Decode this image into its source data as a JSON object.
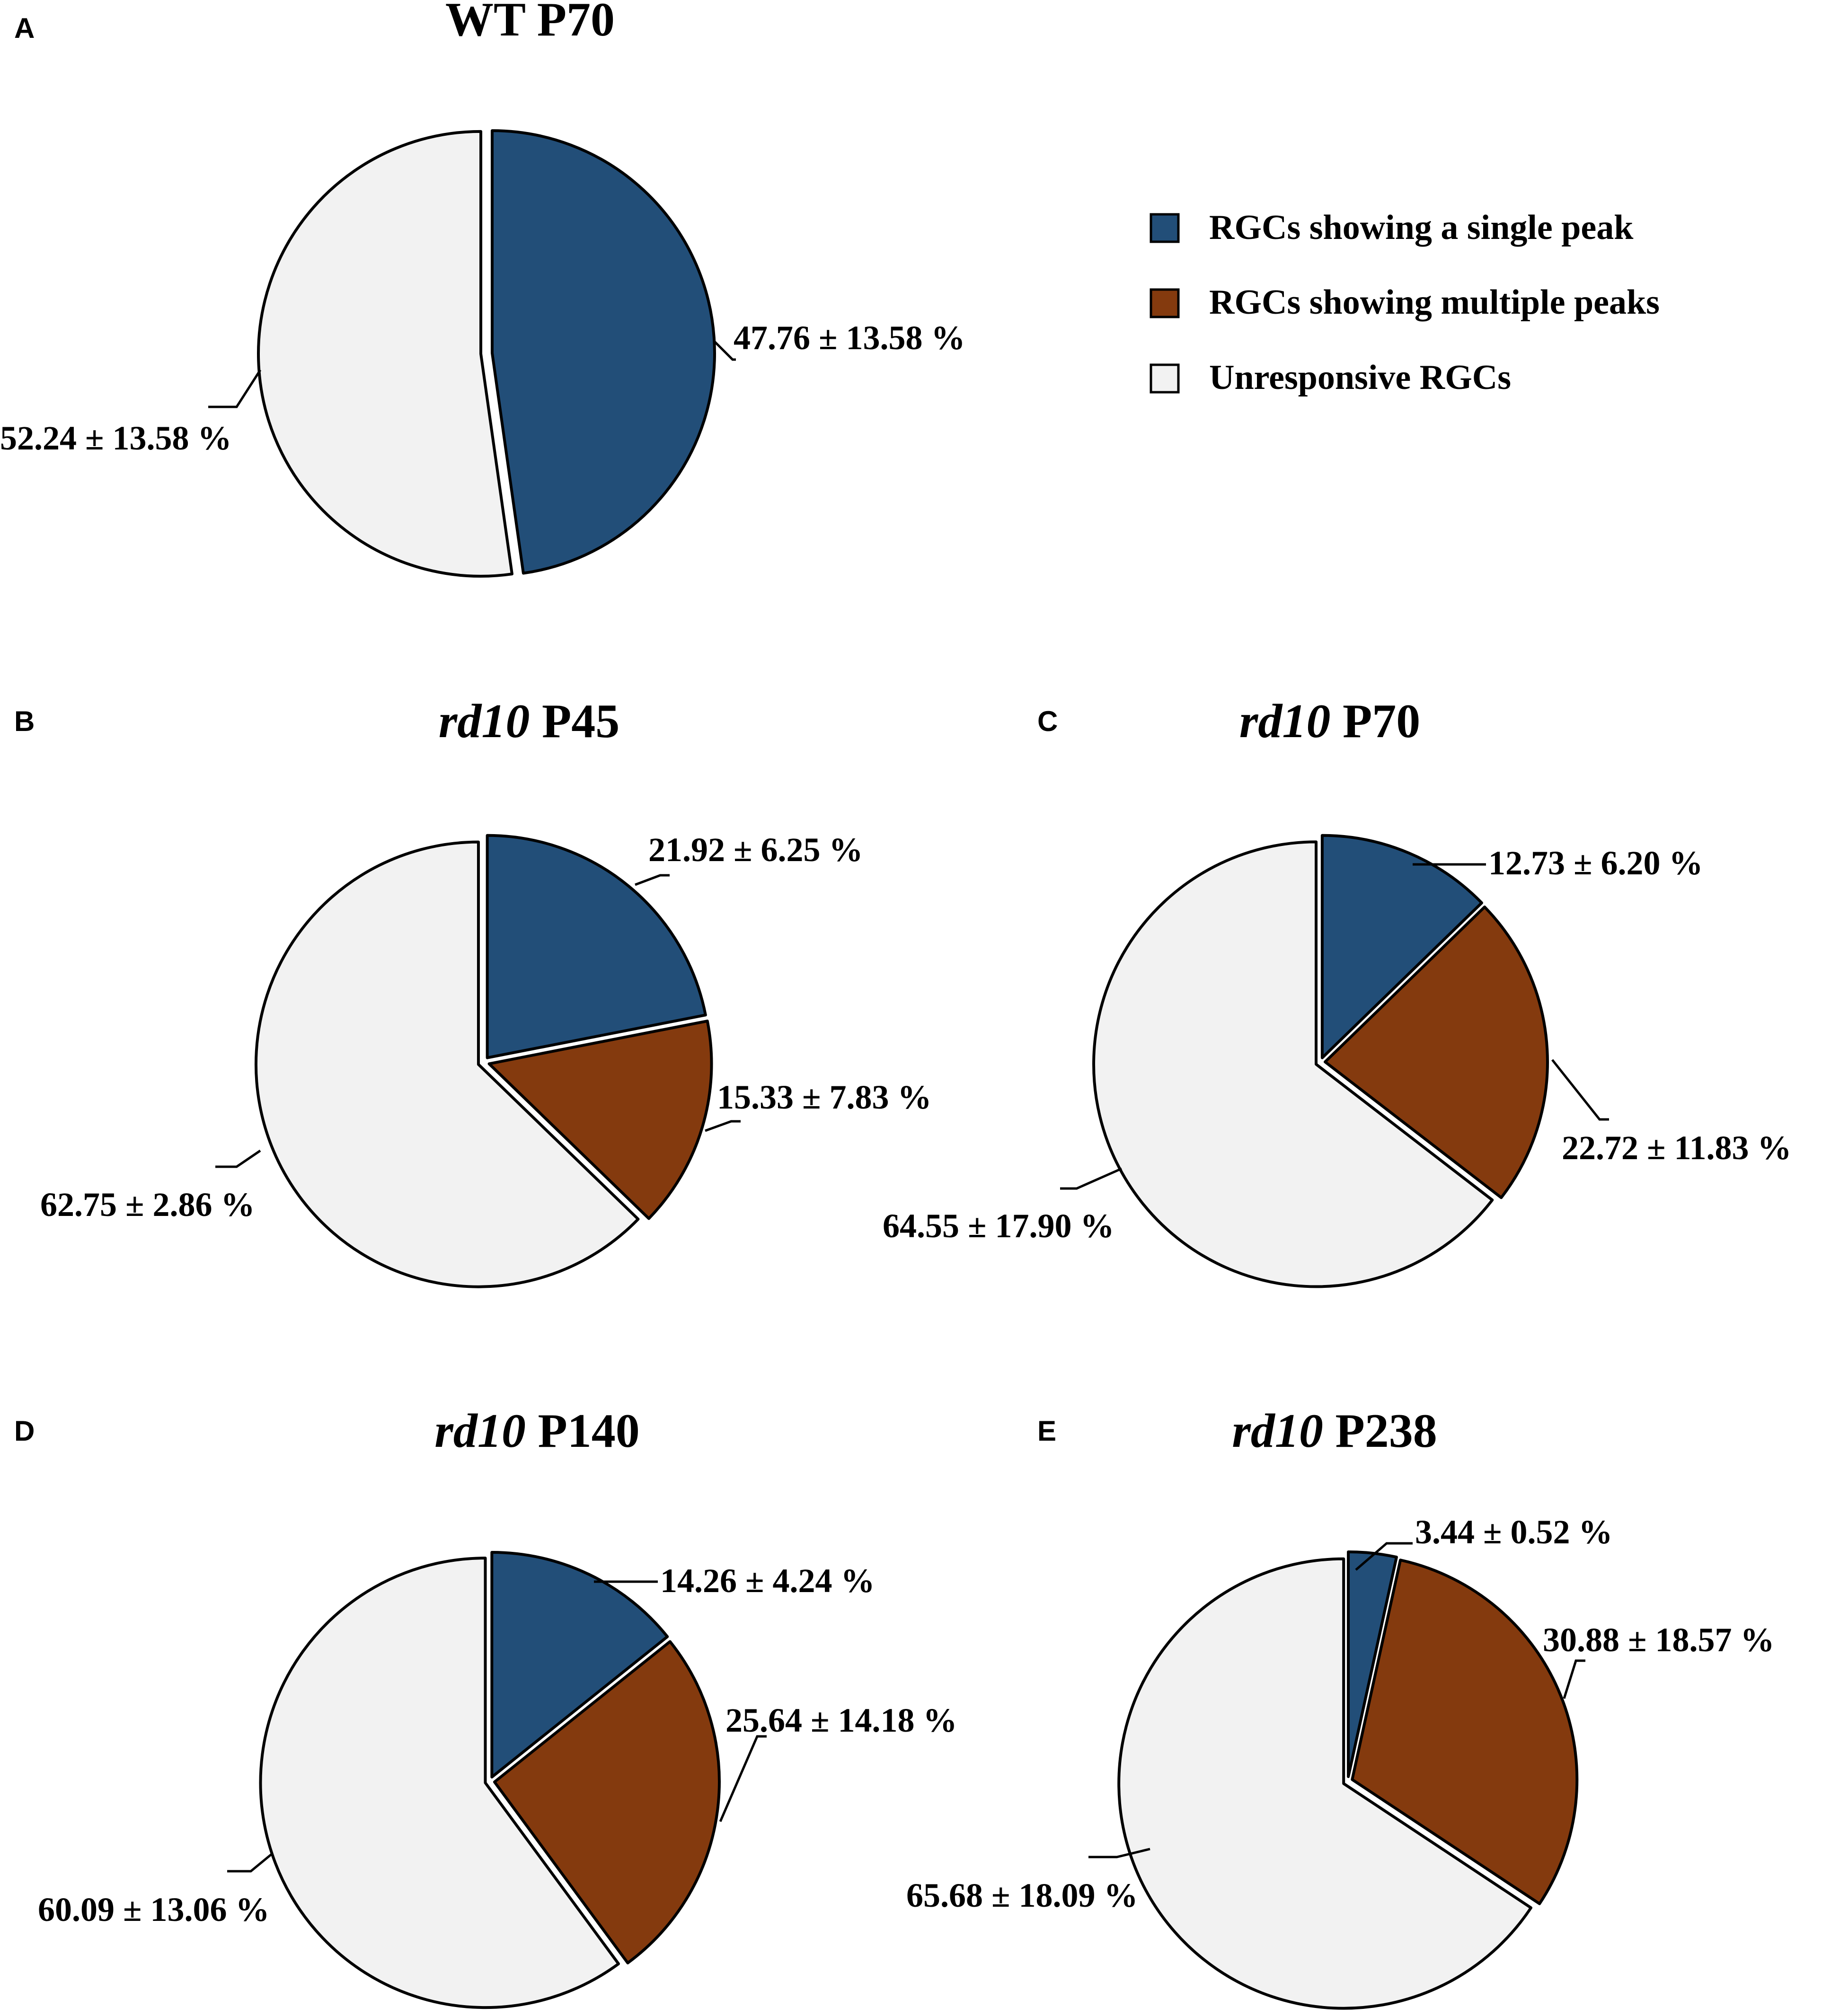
{
  "colors": {
    "single_peak": "#224e78",
    "multiple_peaks": "#843a0e",
    "unresponsive": "#f2f2f2"
  },
  "legend": {
    "items": [
      {
        "label": "RGCs showing a single peak",
        "color_key": "single_peak"
      },
      {
        "label": "RGCs showing multiple peaks",
        "color_key": "multiple_peaks"
      },
      {
        "label": "Unresponsive RGCs",
        "color_key": "unresponsive"
      }
    ]
  },
  "chart_data": [
    {
      "type": "pie",
      "panel": "A",
      "title_italic": "",
      "title_rest": "WT P70",
      "slices": [
        {
          "category": "RGCs showing a single peak",
          "color_key": "single_peak",
          "value": 47.76,
          "sd": 13.58,
          "label": "47.76 ± 13.58 %"
        },
        {
          "category": "Unresponsive RGCs",
          "color_key": "unresponsive",
          "value": 52.24,
          "sd": 13.58,
          "label": "52.24 ± 13.58 %"
        }
      ]
    },
    {
      "type": "pie",
      "panel": "B",
      "title_italic": "rd10",
      "title_rest": " P45",
      "slices": [
        {
          "category": "RGCs showing a single peak",
          "color_key": "single_peak",
          "value": 21.92,
          "sd": 6.25,
          "label": "21.92 ± 6.25 %"
        },
        {
          "category": "RGCs showing multiple peaks",
          "color_key": "multiple_peaks",
          "value": 15.33,
          "sd": 7.83,
          "label": "15.33 ± 7.83 %"
        },
        {
          "category": "Unresponsive RGCs",
          "color_key": "unresponsive",
          "value": 62.75,
          "sd": 2.86,
          "label": "62.75 ± 2.86 %"
        }
      ]
    },
    {
      "type": "pie",
      "panel": "C",
      "title_italic": "rd10",
      "title_rest": " P70",
      "slices": [
        {
          "category": "RGCs showing a single peak",
          "color_key": "single_peak",
          "value": 12.73,
          "sd": 6.2,
          "label": "12.73 ± 6.20 %"
        },
        {
          "category": "RGCs showing multiple peaks",
          "color_key": "multiple_peaks",
          "value": 22.72,
          "sd": 11.83,
          "label": "22.72 ± 11.83 %"
        },
        {
          "category": "Unresponsive RGCs",
          "color_key": "unresponsive",
          "value": 64.55,
          "sd": 17.9,
          "label": "64.55 ± 17.90 %"
        }
      ]
    },
    {
      "type": "pie",
      "panel": "D",
      "title_italic": "rd10",
      "title_rest": " P140",
      "slices": [
        {
          "category": "RGCs showing a single peak",
          "color_key": "single_peak",
          "value": 14.26,
          "sd": 4.24,
          "label": "14.26 ± 4.24 %"
        },
        {
          "category": "RGCs showing multiple peaks",
          "color_key": "multiple_peaks",
          "value": 25.64,
          "sd": 14.18,
          "label": "25.64 ± 14.18 %"
        },
        {
          "category": "Unresponsive RGCs",
          "color_key": "unresponsive",
          "value": 60.09,
          "sd": 13.06,
          "label": "60.09 ± 13.06 %"
        }
      ]
    },
    {
      "type": "pie",
      "panel": "E",
      "title_italic": "rd10",
      "title_rest": " P238",
      "slices": [
        {
          "category": "RGCs showing a single peak",
          "color_key": "single_peak",
          "value": 3.44,
          "sd": 0.52,
          "label": "3.44 ± 0.52 %"
        },
        {
          "category": "RGCs showing multiple peaks",
          "color_key": "multiple_peaks",
          "value": 30.88,
          "sd": 18.57,
          "label": "30.88 ± 18.57 %"
        },
        {
          "category": "Unresponsive RGCs",
          "color_key": "unresponsive",
          "value": 65.68,
          "sd": 18.09,
          "label": "65.68 ± 18.09 %"
        }
      ]
    }
  ]
}
